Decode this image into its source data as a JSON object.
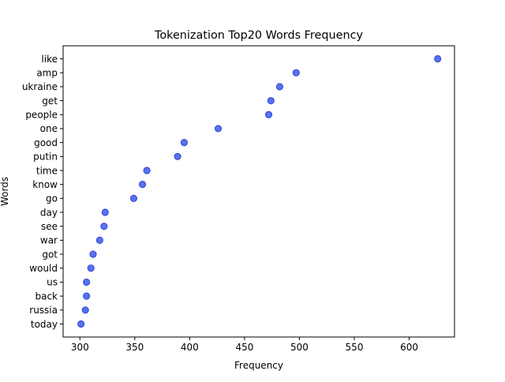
{
  "chart_data": {
    "type": "scatter",
    "title": "Tokenization Top20 Words Frequency",
    "xlabel": "Frequency",
    "ylabel": "Words",
    "xlim": [
      284.7,
      641.3
    ],
    "x_ticks": [
      300,
      350,
      400,
      450,
      500,
      550,
      600
    ],
    "grid": false,
    "legend": "none",
    "marker_color": "#5a72ee",
    "marker_edge_color": "#3b4fd8",
    "words": [
      "like",
      "amp",
      "ukraine",
      "get",
      "people",
      "one",
      "good",
      "putin",
      "time",
      "know",
      "go",
      "day",
      "see",
      "war",
      "got",
      "would",
      "us",
      "back",
      "russia",
      "today"
    ],
    "values": [
      626,
      497,
      482,
      474,
      472,
      426,
      395,
      389,
      361,
      357,
      349,
      323,
      322,
      318,
      312,
      310,
      306,
      306,
      305,
      301
    ]
  }
}
